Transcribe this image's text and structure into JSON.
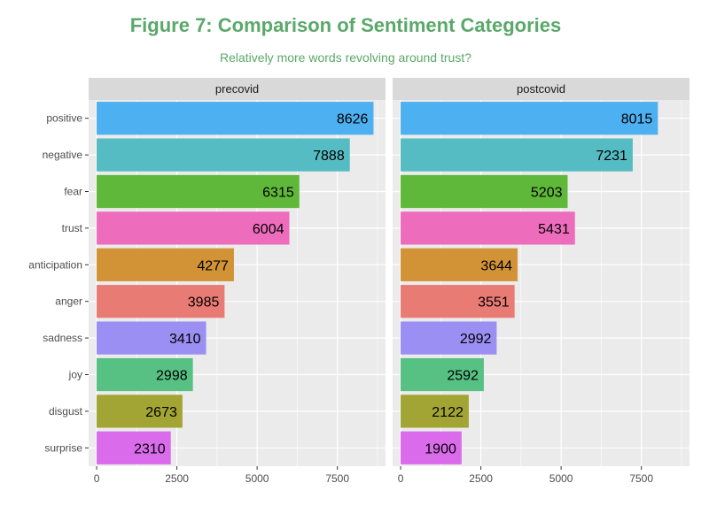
{
  "chart_data": {
    "type": "bar",
    "orientation": "horizontal",
    "title": "Figure 7: Comparison of Sentiment Categories",
    "subtitle": "Relatively more words revolving around trust?",
    "title_color": "#5aa86a",
    "categories": [
      "positive",
      "negative",
      "fear",
      "trust",
      "anticipation",
      "anger",
      "sadness",
      "joy",
      "disgust",
      "surprise"
    ],
    "category_colors": [
      "#4db0f0",
      "#55bcc4",
      "#5fb83a",
      "#ee6cbc",
      "#d19335",
      "#e97b75",
      "#9c8ff4",
      "#57c083",
      "#a2a433",
      "#da6cec"
    ],
    "series": [
      {
        "name": "precovid",
        "values": [
          8626,
          7888,
          6315,
          6004,
          4277,
          3985,
          3410,
          2998,
          2673,
          2310
        ]
      },
      {
        "name": "postcovid",
        "values": [
          8015,
          7231,
          5203,
          5431,
          3644,
          3551,
          2992,
          2592,
          2122,
          1900
        ]
      }
    ],
    "x_ticks": [
      0,
      2500,
      5000,
      7500
    ],
    "xlim": [
      -250,
      9000
    ],
    "xlabel": "",
    "ylabel": "",
    "grid": true
  }
}
